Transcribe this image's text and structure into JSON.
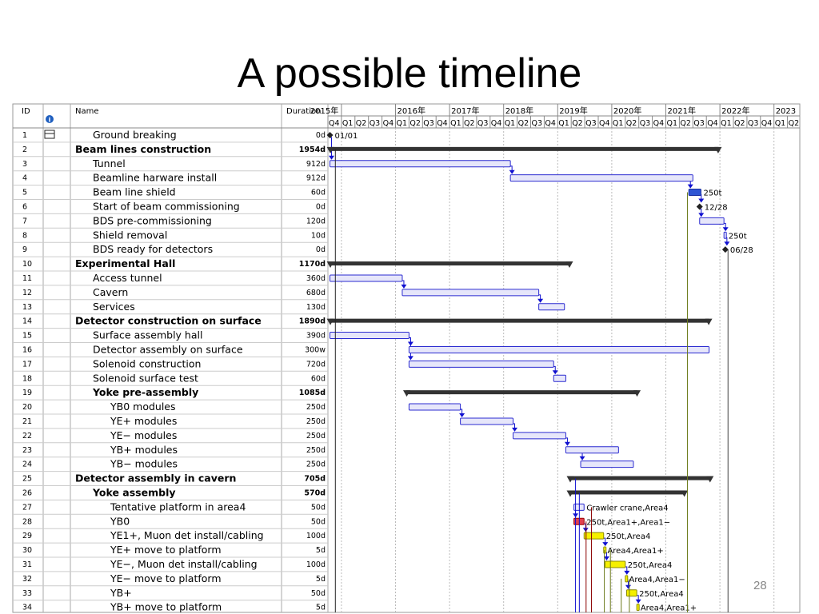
{
  "slide": {
    "title": "A possible timeline",
    "page_number": "28"
  },
  "table": {
    "col_id": "ID",
    "col_name": "Name",
    "col_duration": "Duration",
    "info_icon": "info-icon"
  },
  "chart_data": {
    "type": "gantt",
    "time_axis": {
      "years": [
        "2015年",
        "2016年",
        "2017年",
        "2018年",
        "2019年",
        "2020年",
        "2021年",
        "2022年",
        "2023"
      ],
      "quarters": [
        "Q4",
        "Q1",
        "Q2",
        "Q3",
        "Q4",
        "Q1",
        "Q2",
        "Q3",
        "Q4",
        "Q1",
        "Q2",
        "Q3",
        "Q4",
        "Q1",
        "Q2",
        "Q3",
        "Q4",
        "Q1",
        "Q2",
        "Q3",
        "Q4",
        "Q1",
        "Q2",
        "Q3",
        "Q4",
        "Q1",
        "Q2",
        "Q3",
        "Q4",
        "Q1",
        "Q2",
        "Q3",
        "Q4",
        "Q1",
        "Q2"
      ]
    },
    "tasks": [
      {
        "id": "1",
        "name": "Ground breaking",
        "duration": "0d",
        "level": 1,
        "kind": "milestone",
        "start": 0.15,
        "end": 0.15,
        "label": "01/01"
      },
      {
        "id": "2",
        "name": "Beam lines construction",
        "duration": "1954d",
        "level": 0,
        "kind": "summary",
        "start": 0.15,
        "end": 28.9
      },
      {
        "id": "3",
        "name": "Tunnel",
        "duration": "912d",
        "level": 1,
        "kind": "task",
        "start": 0.15,
        "end": 13.5
      },
      {
        "id": "4",
        "name": "Beamline harware install",
        "duration": "912d",
        "level": 1,
        "kind": "task",
        "start": 13.5,
        "end": 27.0
      },
      {
        "id": "5",
        "name": "Beam line shield",
        "duration": "60d",
        "level": 1,
        "kind": "task",
        "start": 26.7,
        "end": 27.6,
        "label": "250t"
      },
      {
        "id": "6",
        "name": "Start of beam commissioning",
        "duration": "0d",
        "level": 1,
        "kind": "milestone",
        "start": 27.5,
        "end": 27.5,
        "label": "12/28"
      },
      {
        "id": "7",
        "name": "BDS pre-commissioning",
        "duration": "120d",
        "level": 1,
        "kind": "task",
        "start": 27.5,
        "end": 29.3
      },
      {
        "id": "8",
        "name": "Shield removal",
        "duration": "10d",
        "level": 1,
        "kind": "task",
        "start": 29.3,
        "end": 29.45,
        "label": "250t"
      },
      {
        "id": "9",
        "name": "BDS ready for detectors",
        "duration": "0d",
        "level": 1,
        "kind": "milestone",
        "start": 29.4,
        "end": 29.4,
        "label": "06/28"
      },
      {
        "id": "10",
        "name": "Experimental Hall",
        "duration": "1170d",
        "level": 0,
        "kind": "summary",
        "start": 0.15,
        "end": 17.9
      },
      {
        "id": "11",
        "name": "Access tunnel",
        "duration": "360d",
        "level": 1,
        "kind": "task",
        "start": 0.15,
        "end": 5.5
      },
      {
        "id": "12",
        "name": "Cavern",
        "duration": "680d",
        "level": 1,
        "kind": "task",
        "start": 5.5,
        "end": 15.6
      },
      {
        "id": "13",
        "name": "Services",
        "duration": "130d",
        "level": 1,
        "kind": "task",
        "start": 15.6,
        "end": 17.5
      },
      {
        "id": "14",
        "name": "Detector construction on surface",
        "duration": "1890d",
        "level": 0,
        "kind": "summary",
        "start": 0.15,
        "end": 28.2
      },
      {
        "id": "15",
        "name": "Surface assembly hall",
        "duration": "390d",
        "level": 1,
        "kind": "task",
        "start": 0.15,
        "end": 6.0
      },
      {
        "id": "16",
        "name": "Detector assembly on surface",
        "duration": "300w",
        "level": 1,
        "kind": "task",
        "start": 6.0,
        "end": 28.2
      },
      {
        "id": "17",
        "name": "Solenoid construction",
        "duration": "720d",
        "level": 1,
        "kind": "task",
        "start": 6.0,
        "end": 16.7
      },
      {
        "id": "18",
        "name": "Solenoid surface test",
        "duration": "60d",
        "level": 1,
        "kind": "task",
        "start": 16.7,
        "end": 17.6
      },
      {
        "id": "19",
        "name": "Yoke pre-assembly",
        "duration": "1085d",
        "level": 1,
        "kind": "summary",
        "start": 5.8,
        "end": 22.9
      },
      {
        "id": "20",
        "name": "YB0 modules",
        "duration": "250d",
        "level": 2,
        "kind": "task",
        "start": 6.0,
        "end": 9.8
      },
      {
        "id": "21",
        "name": "YE+ modules",
        "duration": "250d",
        "level": 2,
        "kind": "task",
        "start": 9.8,
        "end": 13.7
      },
      {
        "id": "22",
        "name": "YE− modules",
        "duration": "250d",
        "level": 2,
        "kind": "task",
        "start": 13.7,
        "end": 17.6
      },
      {
        "id": "23",
        "name": "YB+ modules",
        "duration": "250d",
        "level": 2,
        "kind": "task",
        "start": 17.6,
        "end": 21.5
      },
      {
        "id": "24",
        "name": "YB− modules",
        "duration": "250d",
        "level": 2,
        "kind": "task",
        "start": 18.7,
        "end": 22.6
      },
      {
        "id": "25",
        "name": "Detector assembly in cavern",
        "duration": "705d",
        "level": 0,
        "kind": "summary",
        "start": 17.9,
        "end": 28.3
      },
      {
        "id": "26",
        "name": "Yoke assembly",
        "duration": "570d",
        "level": 1,
        "kind": "summary",
        "start": 17.9,
        "end": 26.4
      },
      {
        "id": "27",
        "name": "Tentative platform in area4",
        "duration": "50d",
        "level": 2,
        "kind": "task",
        "start": 18.2,
        "end": 18.95,
        "label": "Crawler crane,Area4"
      },
      {
        "id": "28",
        "name": "YB0",
        "duration": "50d",
        "level": 2,
        "kind": "task",
        "start": 18.2,
        "end": 18.95,
        "label": "250t,Area1+,Area1−",
        "highlight": "red"
      },
      {
        "id": "29",
        "name": "YE1+, Muon det install/cabling",
        "duration": "100d",
        "level": 2,
        "kind": "task",
        "start": 18.95,
        "end": 20.4,
        "label": "250t,Area4",
        "highlight": "yellow"
      },
      {
        "id": "30",
        "name": "YE+ move to platform",
        "duration": "5d",
        "level": 2,
        "kind": "task",
        "start": 20.4,
        "end": 20.5,
        "label": "Area4,Area1+",
        "highlight": "yellow"
      },
      {
        "id": "31",
        "name": "YE−, Muon det install/cabling",
        "duration": "100d",
        "level": 2,
        "kind": "task",
        "start": 20.5,
        "end": 22.0,
        "label": "250t,Area4",
        "highlight": "yellow"
      },
      {
        "id": "32",
        "name": "YE− move to platform",
        "duration": "5d",
        "level": 2,
        "kind": "task",
        "start": 22.0,
        "end": 22.1,
        "label": "Area4,Area1−",
        "highlight": "yellow"
      },
      {
        "id": "33",
        "name": "YB+",
        "duration": "50d",
        "level": 2,
        "kind": "task",
        "start": 22.1,
        "end": 22.85,
        "label": "250t,Area4",
        "highlight": "yellow"
      },
      {
        "id": "34",
        "name": "YB+ move to platform",
        "duration": "5d",
        "level": 2,
        "kind": "task",
        "start": 22.85,
        "end": 22.95,
        "label": "Area4,Area1+",
        "highlight": "yellow"
      }
    ],
    "dependencies": [
      {
        "from": 0,
        "to": 2
      },
      {
        "from": 2,
        "to": 3
      },
      {
        "from": 3,
        "to": 4
      },
      {
        "from": 4,
        "to": 5
      },
      {
        "from": 5,
        "to": 6
      },
      {
        "from": 6,
        "to": 7
      },
      {
        "from": 7,
        "to": 8
      },
      {
        "from": 10,
        "to": 11
      },
      {
        "from": 11,
        "to": 12
      },
      {
        "from": 14,
        "to": 15
      },
      {
        "from": 14,
        "to": 16
      },
      {
        "from": 16,
        "to": 17
      },
      {
        "from": 19,
        "to": 20
      },
      {
        "from": 20,
        "to": 21
      },
      {
        "from": 21,
        "to": 22
      },
      {
        "from": 22,
        "to": 23
      },
      {
        "from": 26,
        "to": 27
      },
      {
        "from": 27,
        "to": 28
      },
      {
        "from": 28,
        "to": 29
      },
      {
        "from": 29,
        "to": 30
      },
      {
        "from": 30,
        "to": 31
      },
      {
        "from": 31,
        "to": 32
      },
      {
        "from": 32,
        "to": 33
      }
    ],
    "colors": {
      "task_fill": "#e6e6fa",
      "task_border": "#2b2bd0",
      "summary": "#333333",
      "link": "#1010d0",
      "red": "#e04050",
      "yellow": "#f5f000",
      "olive": "#6b7a1a",
      "darkred": "#8b0000"
    }
  }
}
